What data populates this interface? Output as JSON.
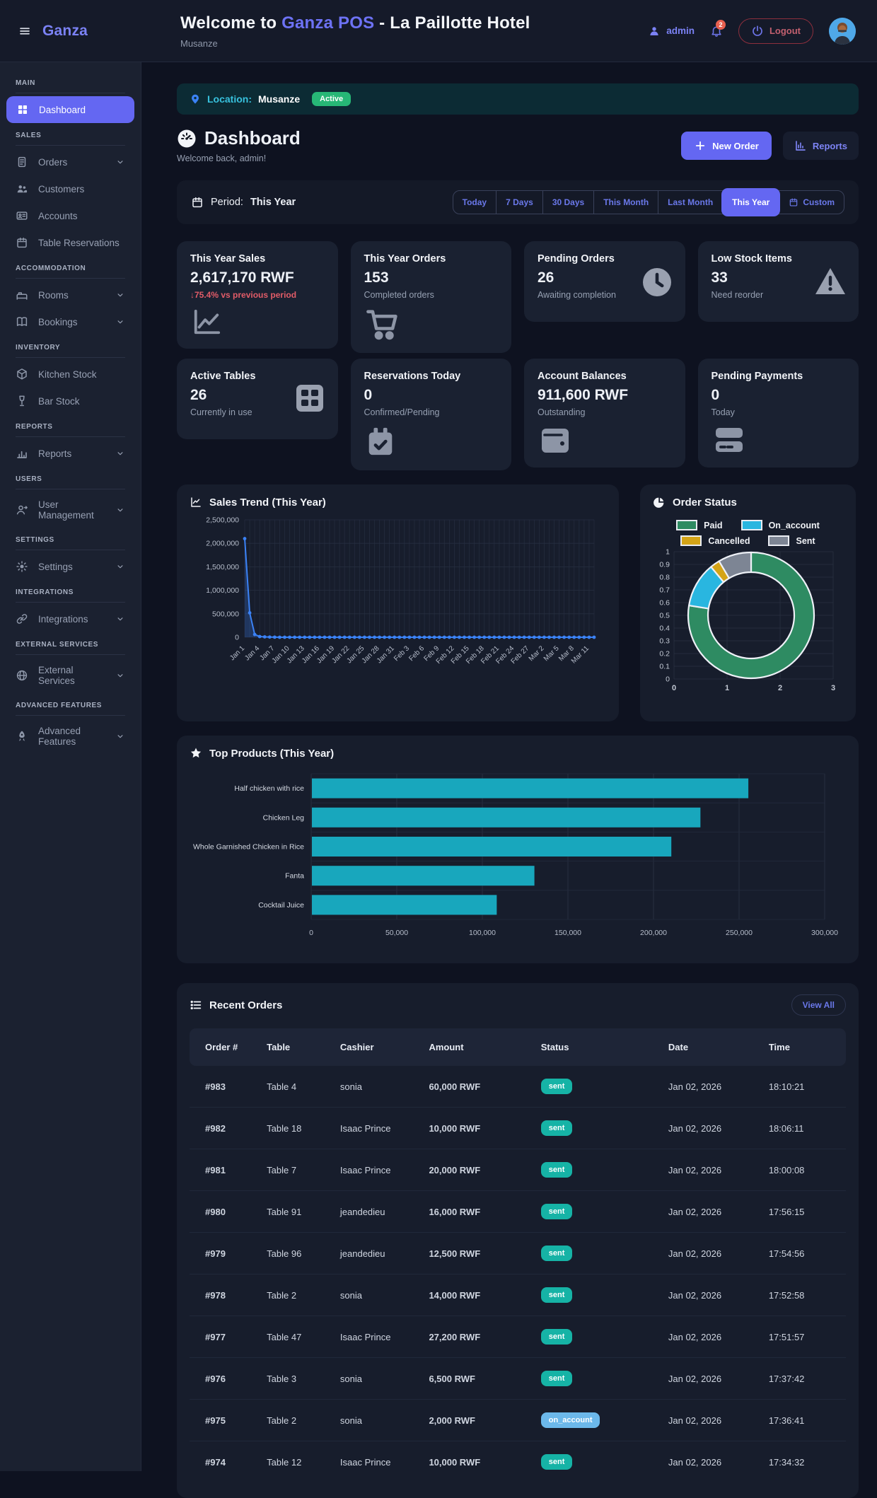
{
  "header": {
    "logo": "Ganza",
    "title": {
      "prefix": "Welcome to ",
      "brand": "Ganza POS",
      "suffix": " - La Paillotte Hotel"
    },
    "subtitle": "Musanze",
    "user": "admin",
    "notifications": "2",
    "logout": "Logout"
  },
  "sidebar": {
    "sections": [
      {
        "label": "MAIN",
        "items": [
          {
            "label": "Dashboard",
            "icon": "dashboard-icon",
            "active": true,
            "expandable": false
          }
        ]
      },
      {
        "label": "SALES",
        "items": [
          {
            "label": "Orders",
            "icon": "orders-icon",
            "expandable": true
          },
          {
            "label": "Customers",
            "icon": "customers-icon",
            "expandable": false
          },
          {
            "label": "Accounts",
            "icon": "accounts-icon",
            "expandable": false
          },
          {
            "label": "Table Reservations",
            "icon": "calendar-icon",
            "expandable": false
          }
        ]
      },
      {
        "label": "ACCOMMODATION",
        "items": [
          {
            "label": "Rooms",
            "icon": "bed-icon",
            "expandable": true
          },
          {
            "label": "Bookings",
            "icon": "book-icon",
            "expandable": true
          }
        ]
      },
      {
        "label": "INVENTORY",
        "items": [
          {
            "label": "Kitchen Stock",
            "icon": "cube-icon",
            "expandable": false
          },
          {
            "label": "Bar Stock",
            "icon": "wine-icon",
            "expandable": false
          }
        ]
      },
      {
        "label": "REPORTS",
        "items": [
          {
            "label": "Reports",
            "icon": "bar-chart-icon",
            "expandable": true
          }
        ]
      },
      {
        "label": "USERS",
        "items": [
          {
            "label": "User Management",
            "icon": "user-management-icon",
            "expandable": true
          }
        ]
      },
      {
        "label": "SETTINGS",
        "items": [
          {
            "label": "Settings",
            "icon": "gear-icon",
            "expandable": true
          }
        ]
      },
      {
        "label": "INTEGRATIONS",
        "items": [
          {
            "label": "Integrations",
            "icon": "link-icon",
            "expandable": true
          }
        ]
      },
      {
        "label": "EXTERNAL SERVICES",
        "items": [
          {
            "label": "External Services",
            "icon": "globe-icon",
            "expandable": true
          }
        ]
      },
      {
        "label": "ADVANCED FEATURES",
        "items": [
          {
            "label": "Advanced Features",
            "icon": "rocket-icon",
            "expandable": true
          }
        ]
      }
    ]
  },
  "location_banner": {
    "label": "Location:",
    "value": "Musanze",
    "badge": "Active"
  },
  "page": {
    "title": "Dashboard",
    "welcome": "Welcome back, admin!",
    "new_order": "New Order",
    "reports": "Reports"
  },
  "period": {
    "label": "Period:",
    "value": "This Year",
    "options": [
      {
        "label": "Today",
        "active": false,
        "icon": null
      },
      {
        "label": "7 Days",
        "active": false,
        "icon": null
      },
      {
        "label": "30 Days",
        "active": false,
        "icon": null
      },
      {
        "label": "This Month",
        "active": false,
        "icon": null
      },
      {
        "label": "Last Month",
        "active": false,
        "icon": null
      },
      {
        "label": "This Year",
        "active": true,
        "icon": null
      },
      {
        "label": "Custom",
        "active": false,
        "icon": "calendar-icon"
      }
    ]
  },
  "stats": [
    {
      "title": "This Year Sales",
      "value": "2,617,170 RWF",
      "change": "↓75.4% vs previous period",
      "change_color": "#e25c68",
      "sub": null,
      "icon": "line-chart-icon",
      "variant": "icon-bottom"
    },
    {
      "title": "This Year Orders",
      "value": "153",
      "change": null,
      "sub": "Completed orders",
      "icon": "cart-icon",
      "variant": "icon-bottom"
    },
    {
      "title": "Pending Orders",
      "value": "26",
      "change": null,
      "sub": "Awaiting completion",
      "icon": "clock-icon",
      "variant": "icon-right"
    },
    {
      "title": "Low Stock Items",
      "value": "33",
      "change": null,
      "sub": "Need reorder",
      "icon": "warning-icon",
      "variant": "icon-right"
    },
    {
      "title": "Active Tables",
      "value": "26",
      "change": null,
      "sub": "Currently in use",
      "icon": "table-grid-icon",
      "variant": "icon-right"
    },
    {
      "title": "Reservations Today",
      "value": "0",
      "change": null,
      "sub": "Confirmed/Pending",
      "icon": "calendar-check-icon",
      "variant": "icon-bottom"
    },
    {
      "title": "Account Balances",
      "value": "911,600 RWF",
      "change": null,
      "sub": "Outstanding",
      "icon": "wallet-icon",
      "variant": "icon-bottom"
    },
    {
      "title": "Pending Payments",
      "value": "0",
      "change": null,
      "sub": "Today",
      "icon": "credit-card-icon",
      "variant": "icon-bottom"
    }
  ],
  "chart_data": [
    {
      "type": "line",
      "title": "Sales Trend (This Year)",
      "line_color": "#3b82f6",
      "y_ticks": [
        "0",
        "500,000",
        "1,000,000",
        "1,500,000",
        "2,000,000",
        "2,500,000"
      ],
      "ylim": [
        0,
        2500000
      ],
      "x_tick_labels": [
        "Jan 1",
        "Jan 4",
        "Jan 7",
        "Jan 10",
        "Jan 13",
        "Jan 16",
        "Jan 19",
        "Jan 22",
        "Jan 25",
        "Jan 28",
        "Jan 31",
        "Feb 3",
        "Feb 6",
        "Feb 9",
        "Feb 12",
        "Feb 15",
        "Feb 18",
        "Feb 21",
        "Feb 24",
        "Feb 27",
        "Mar 2",
        "Mar 5",
        "Mar 8",
        "Mar 11"
      ],
      "label_every": 3,
      "grid": true,
      "values": [
        2100000,
        520000,
        60000,
        15000,
        8000,
        4000,
        2000,
        0,
        0,
        0,
        0,
        0,
        0,
        0,
        0,
        0,
        0,
        0,
        0,
        0,
        0,
        0,
        0,
        0,
        0,
        0,
        0,
        0,
        0,
        0,
        0,
        0,
        0,
        0,
        0,
        0,
        0,
        0,
        0,
        0,
        0,
        0,
        0,
        0,
        0,
        0,
        0,
        0,
        0,
        0,
        0,
        0,
        0,
        0,
        0,
        0,
        0,
        0,
        0,
        0,
        0,
        0,
        0,
        0,
        0,
        0,
        0,
        0,
        0,
        0,
        0
      ]
    },
    {
      "type": "donut",
      "title": "Order Status",
      "series": [
        {
          "name": "Paid",
          "fraction": 0.775,
          "color": "#2e8b62"
        },
        {
          "name": "On_account",
          "fraction": 0.115,
          "color": "#29b6e0"
        },
        {
          "name": "Cancelled",
          "fraction": 0.025,
          "color": "#d4a417"
        },
        {
          "name": "Sent",
          "fraction": 0.085,
          "color": "#7d8594"
        }
      ],
      "legend_position": "top",
      "y_ticks": [
        "1",
        "0.9",
        "0.8",
        "0.7",
        "0.6",
        "0.5",
        "0.4",
        "0.3",
        "0.2",
        "0.1",
        "0"
      ],
      "x_ticks": [
        "0",
        "1",
        "2",
        "3"
      ],
      "grid": true
    },
    {
      "type": "bar",
      "title": "Top Products (This Year)",
      "orientation": "horizontal",
      "bar_color": "#18a7bd",
      "categories": [
        "Half chicken with rice",
        "Chicken Leg",
        "Whole Garnished Chicken in Rice",
        "Fanta",
        "Cocktail Juice"
      ],
      "values": [
        255000,
        227000,
        210000,
        130000,
        108000
      ],
      "x_ticks": [
        "0",
        "50,000",
        "100,000",
        "150,000",
        "200,000",
        "250,000",
        "300,000"
      ],
      "xlim": [
        0,
        300000
      ],
      "grid": true
    }
  ],
  "recent_orders": {
    "title": "Recent Orders",
    "view_all": "View All",
    "columns": [
      "Order #",
      "Table",
      "Cashier",
      "Amount",
      "Status",
      "Date",
      "Time"
    ],
    "status_colors": {
      "sent": "#16b3a6",
      "on_account": "#6cb8ea"
    },
    "rows": [
      {
        "order": "#983",
        "table": "Table 4",
        "cashier": "sonia",
        "amount": "60,000 RWF",
        "status": "sent",
        "date": "Jan 02, 2026",
        "time": "18:10:21"
      },
      {
        "order": "#982",
        "table": "Table 18",
        "cashier": "Isaac Prince",
        "amount": "10,000 RWF",
        "status": "sent",
        "date": "Jan 02, 2026",
        "time": "18:06:11"
      },
      {
        "order": "#981",
        "table": "Table 7",
        "cashier": "Isaac Prince",
        "amount": "20,000 RWF",
        "status": "sent",
        "date": "Jan 02, 2026",
        "time": "18:00:08"
      },
      {
        "order": "#980",
        "table": "Table 91",
        "cashier": "jeandedieu",
        "amount": "16,000 RWF",
        "status": "sent",
        "date": "Jan 02, 2026",
        "time": "17:56:15"
      },
      {
        "order": "#979",
        "table": "Table 96",
        "cashier": "jeandedieu",
        "amount": "12,500 RWF",
        "status": "sent",
        "date": "Jan 02, 2026",
        "time": "17:54:56"
      },
      {
        "order": "#978",
        "table": "Table 2",
        "cashier": "sonia",
        "amount": "14,000 RWF",
        "status": "sent",
        "date": "Jan 02, 2026",
        "time": "17:52:58"
      },
      {
        "order": "#977",
        "table": "Table 47",
        "cashier": "Isaac Prince",
        "amount": "27,200 RWF",
        "status": "sent",
        "date": "Jan 02, 2026",
        "time": "17:51:57"
      },
      {
        "order": "#976",
        "table": "Table 3",
        "cashier": "sonia",
        "amount": "6,500 RWF",
        "status": "sent",
        "date": "Jan 02, 2026",
        "time": "17:37:42"
      },
      {
        "order": "#975",
        "table": "Table 2",
        "cashier": "sonia",
        "amount": "2,000 RWF",
        "status": "on_account",
        "date": "Jan 02, 2026",
        "time": "17:36:41"
      },
      {
        "order": "#974",
        "table": "Table 12",
        "cashier": "Isaac Prince",
        "amount": "10,000 RWF",
        "status": "sent",
        "date": "Jan 02, 2026",
        "time": "17:34:32"
      }
    ]
  },
  "colors": {
    "accent": "#6467f2",
    "badge_green": "#27b776",
    "red": "#e25c68",
    "teal_badge": "#16b3a6",
    "blue_badge": "#6cb8ea"
  }
}
